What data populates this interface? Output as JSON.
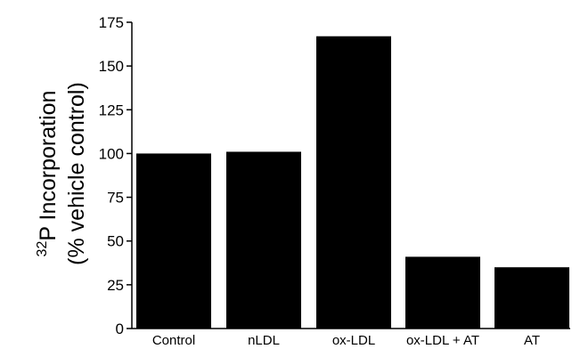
{
  "chart_data": {
    "type": "bar",
    "categories": [
      "Control",
      "nLDL",
      "ox-LDL",
      "ox-LDL + AT",
      "AT"
    ],
    "values": [
      100,
      101,
      167,
      41,
      35
    ],
    "ylim": [
      0,
      175
    ],
    "yticks": [
      0,
      25,
      50,
      75,
      100,
      125,
      150,
      175
    ],
    "ylabel": {
      "superscript": "32",
      "line1": "P Incorporation",
      "line2": "(% vehicle control)"
    },
    "title": "",
    "xlabel": "",
    "grid": false,
    "bar_color": "#000000"
  }
}
